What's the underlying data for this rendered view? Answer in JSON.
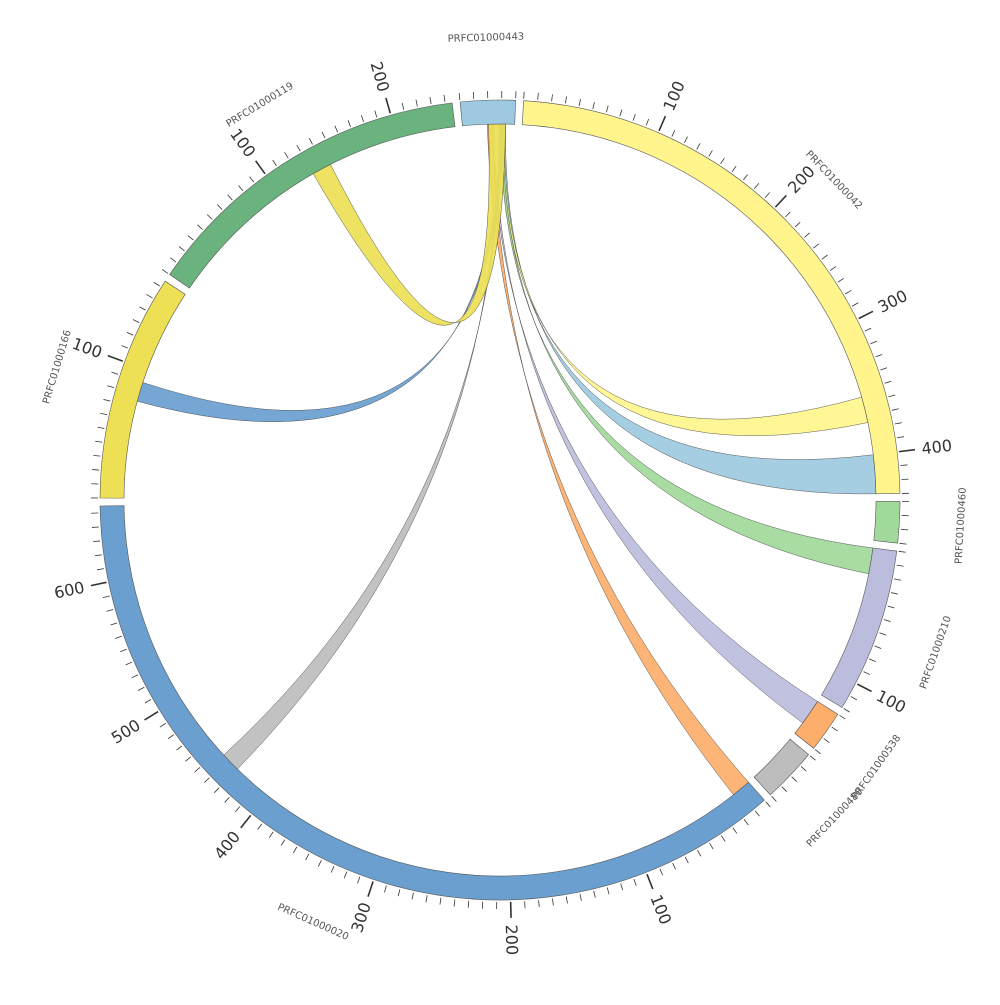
{
  "chart_data": {
    "type": "chord",
    "tick_step": 10,
    "label_step": 100,
    "segments": [
      {
        "name": "PRFC01000443",
        "length": 40,
        "color": "#9ecae1"
      },
      {
        "name": "PRFC01000042",
        "length": 430,
        "color": "#fff58c"
      },
      {
        "name": "PRFC01000460",
        "length": 30,
        "color": "#a1d99b"
      },
      {
        "name": "PRFC01000210",
        "length": 120,
        "color": "#bcbddc"
      },
      {
        "name": "PRFC01000538",
        "length": 30,
        "color": "#fdae6b"
      },
      {
        "name": "PRFC01000480",
        "length": 40,
        "color": "#bdbdbd"
      },
      {
        "name": "PRFC01000020",
        "length": 655,
        "color": "#6a9fd0"
      },
      {
        "name": "PRFC01000166",
        "length": 165,
        "color": "#ede055"
      },
      {
        "name": "PRFC01000119",
        "length": 245,
        "color": "#6ab37f"
      }
    ],
    "links": [
      {
        "source": {
          "seq": "PRFC01000443",
          "start": 31,
          "end": 33
        },
        "target": {
          "seq": "PRFC01000042",
          "start": 400,
          "end": 430
        },
        "color": "#9ecae1"
      },
      {
        "source": {
          "seq": "PRFC01000443",
          "start": 30,
          "end": 32
        },
        "target": {
          "seq": "PRFC01000042",
          "start": 355,
          "end": 375
        },
        "color": "#fff58c"
      },
      {
        "source": {
          "seq": "PRFC01000443",
          "start": 29,
          "end": 31
        },
        "target": {
          "seq": "PRFC01000210",
          "start": 0,
          "end": 20
        },
        "color": "#a1d99b"
      },
      {
        "source": {
          "seq": "PRFC01000443",
          "start": 22,
          "end": 24
        },
        "target": {
          "seq": "PRFC01000538",
          "start": 0,
          "end": 20
        },
        "color": "#bcbddc"
      },
      {
        "source": {
          "seq": "PRFC01000443",
          "start": 19,
          "end": 23
        },
        "target": {
          "seq": "PRFC01000020",
          "start": 0,
          "end": 15
        },
        "color": "#fdae6b"
      },
      {
        "source": {
          "seq": "PRFC01000443",
          "start": 28,
          "end": 30
        },
        "target": {
          "seq": "PRFC01000020",
          "start": 430,
          "end": 445
        },
        "color": "#bdbdbd"
      },
      {
        "source": {
          "seq": "PRFC01000443",
          "start": 29,
          "end": 31
        },
        "target": {
          "seq": "PRFC01000166",
          "start": 75,
          "end": 90
        },
        "color": "#6a9fd0"
      },
      {
        "source": {
          "seq": "PRFC01000443",
          "start": 20,
          "end": 33
        },
        "target": {
          "seq": "PRFC01000119",
          "start": 130,
          "end": 145
        },
        "color": "#ede055"
      }
    ]
  }
}
